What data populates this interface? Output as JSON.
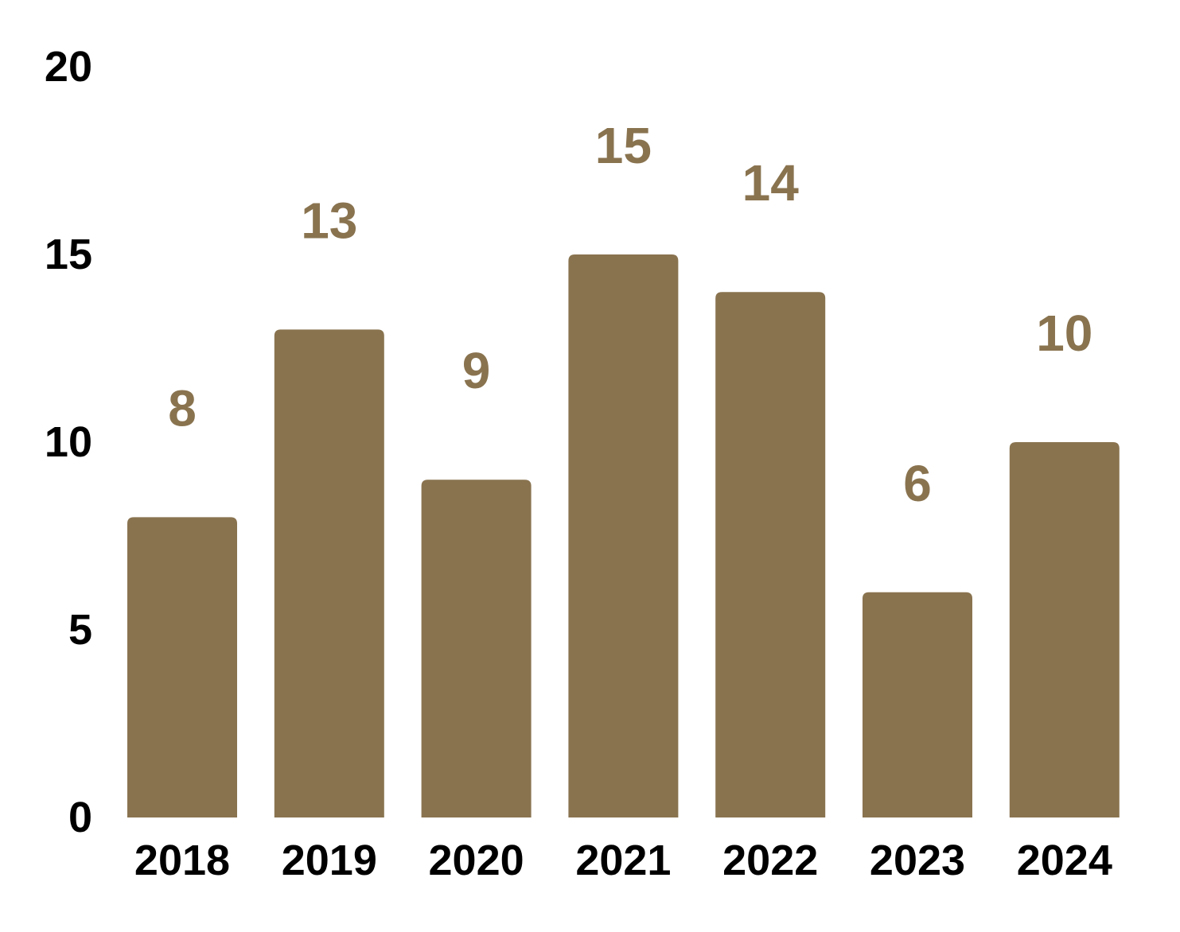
{
  "chart_data": {
    "type": "bar",
    "title": "",
    "xlabel": "",
    "ylabel": "",
    "categories": [
      "2018",
      "2019",
      "2020",
      "2021",
      "2022",
      "2023",
      "2024"
    ],
    "values": [
      8,
      13,
      9,
      15,
      14,
      6,
      10
    ],
    "data_labels": [
      "8",
      "13",
      "9",
      "15",
      "14",
      "6",
      "10"
    ],
    "ylim": [
      0,
      20
    ],
    "y_ticks": [
      0,
      5,
      10,
      15,
      20
    ],
    "y_tick_labels": [
      "0",
      "5",
      "10",
      "15",
      "20"
    ],
    "grid": false,
    "legend": "none",
    "colors": {
      "bar": "#89734f",
      "data_label": "#89734f",
      "tick_label": "#000000"
    }
  }
}
